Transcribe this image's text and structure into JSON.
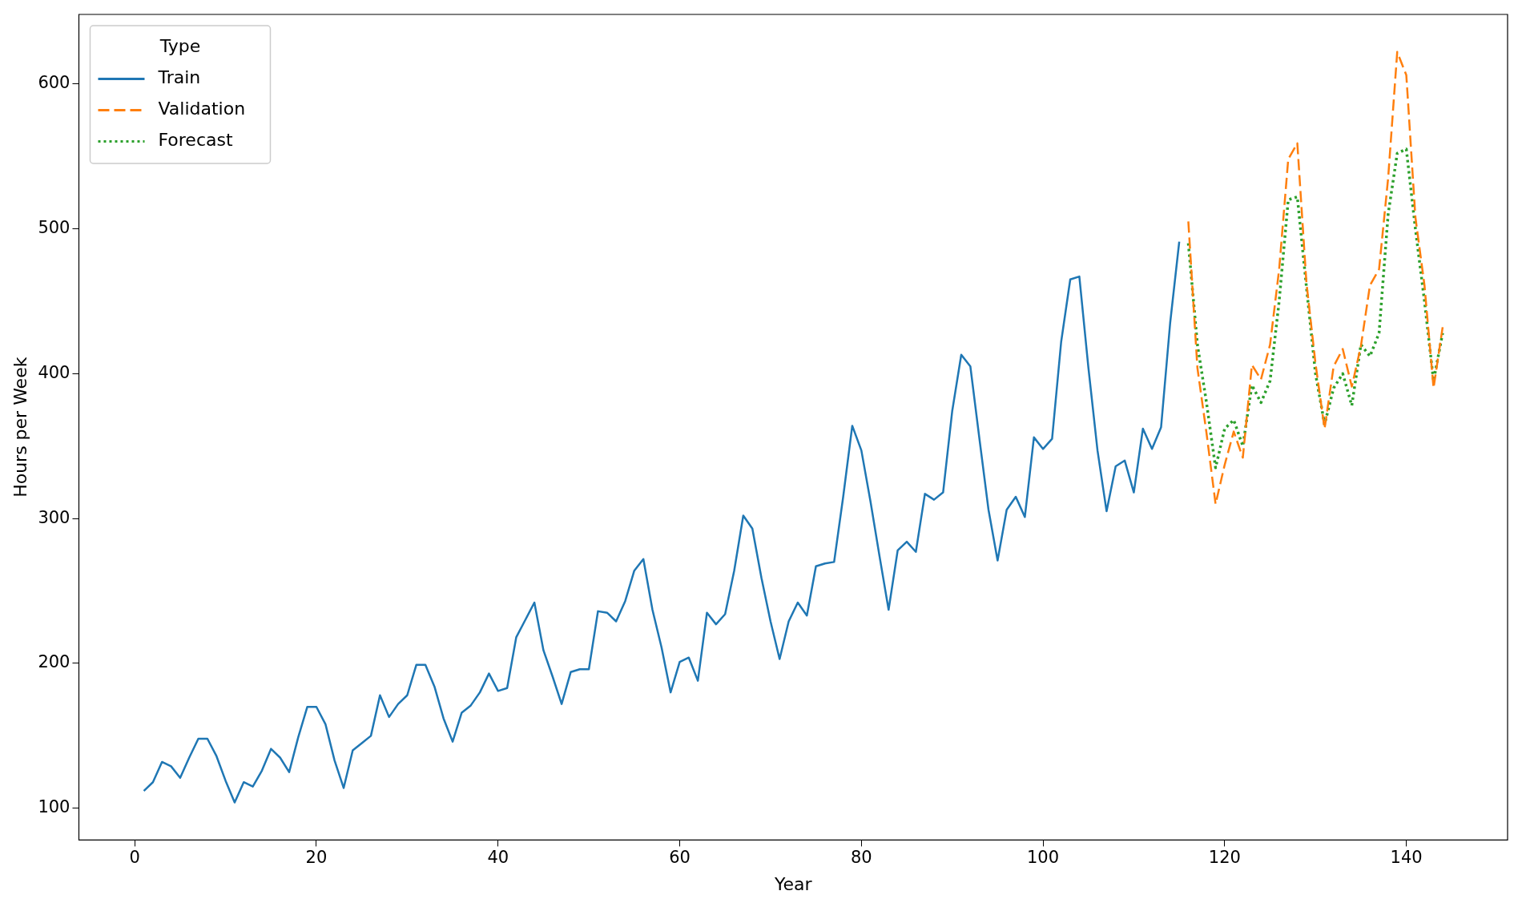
{
  "chart_data": {
    "type": "line",
    "xlabel": "Year",
    "ylabel": "Hours per Week",
    "legend_title": "Type",
    "legend": "top left",
    "grid": false,
    "marker": "none",
    "xlim": [
      -6.15,
      151.15
    ],
    "xticks": [
      0,
      20,
      40,
      60,
      80,
      100,
      120,
      140
    ],
    "ylim": [
      78.1,
      647.9
    ],
    "yticks": [
      100,
      200,
      300,
      400,
      500,
      600
    ],
    "series": [
      {
        "name": "Train",
        "color": "#1f77b4",
        "line_style": "solid",
        "x": [
          1,
          2,
          3,
          4,
          5,
          6,
          7,
          8,
          9,
          10,
          11,
          12,
          13,
          14,
          15,
          16,
          17,
          18,
          19,
          20,
          21,
          22,
          23,
          24,
          25,
          26,
          27,
          28,
          29,
          30,
          31,
          32,
          33,
          34,
          35,
          36,
          37,
          38,
          39,
          40,
          41,
          42,
          43,
          44,
          45,
          46,
          47,
          48,
          49,
          50,
          51,
          52,
          53,
          54,
          55,
          56,
          57,
          58,
          59,
          60,
          61,
          62,
          63,
          64,
          65,
          66,
          67,
          68,
          69,
          70,
          71,
          72,
          73,
          74,
          75,
          76,
          77,
          78,
          79,
          80,
          81,
          82,
          83,
          84,
          85,
          86,
          87,
          88,
          89,
          90,
          91,
          92,
          93,
          94,
          95,
          96,
          97,
          98,
          99,
          100,
          101,
          102,
          103,
          104,
          105,
          106,
          107,
          108,
          109,
          110,
          111,
          112,
          113,
          114,
          115
        ],
        "values": [
          112,
          118,
          132,
          129,
          121,
          135,
          148,
          148,
          136,
          119,
          104,
          118,
          115,
          126,
          141,
          135,
          125,
          149,
          170,
          170,
          158,
          133,
          114,
          140,
          145,
          150,
          178,
          163,
          172,
          178,
          199,
          199,
          184,
          162,
          146,
          166,
          171,
          180,
          193,
          181,
          183,
          218,
          230,
          242,
          209,
          191,
          172,
          194,
          196,
          196,
          236,
          235,
          229,
          243,
          264,
          272,
          237,
          211,
          180,
          201,
          204,
          188,
          235,
          227,
          234,
          264,
          302,
          293,
          259,
          229,
          203,
          229,
          242,
          233,
          267,
          269,
          270,
          315,
          364,
          347,
          312,
          274,
          237,
          278,
          284,
          277,
          317,
          313,
          318,
          374,
          413,
          405,
          355,
          306,
          271,
          306,
          315,
          301,
          356,
          348,
          355,
          422,
          465,
          467,
          404,
          347,
          305,
          336,
          340,
          318,
          362,
          348,
          363,
          435,
          491
        ]
      },
      {
        "name": "Validation",
        "color": "#ff7f0e",
        "line_style": "dashed",
        "x": [
          116,
          117,
          118,
          119,
          120,
          121,
          122,
          123,
          124,
          125,
          126,
          127,
          128,
          129,
          130,
          131,
          132,
          133,
          134,
          135,
          136,
          137,
          138,
          139,
          140,
          141,
          142,
          143,
          144
        ],
        "values": [
          505,
          404,
          359,
          310,
          337,
          360,
          342,
          406,
          396,
          420,
          472,
          548,
          559,
          463,
          407,
          362,
          405,
          417,
          391,
          419,
          461,
          472,
          535,
          622,
          606,
          508,
          461,
          390,
          432
        ]
      },
      {
        "name": "Forecast",
        "color": "#2ca02c",
        "line_style": "dotted",
        "x": [
          116,
          117,
          118,
          119,
          120,
          121,
          122,
          123,
          124,
          125,
          126,
          127,
          128,
          129,
          130,
          131,
          132,
          133,
          134,
          135,
          136,
          137,
          138,
          139,
          140,
          141,
          142,
          143,
          144
        ],
        "values": [
          490,
          420,
          380,
          335,
          362,
          368,
          350,
          392,
          380,
          395,
          450,
          520,
          522,
          460,
          400,
          365,
          390,
          400,
          378,
          420,
          412,
          428,
          510,
          552,
          555,
          500,
          450,
          395,
          428
        ]
      }
    ]
  }
}
